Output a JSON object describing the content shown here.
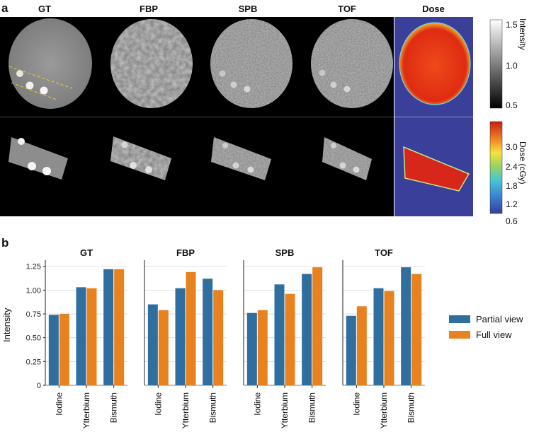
{
  "panel_a": {
    "label": "a",
    "column_titles": [
      "GT",
      "FBP",
      "SPB",
      "TOF",
      "Dose"
    ],
    "intensity_bar": {
      "label": "Intensity",
      "ticks": [
        "1.5",
        "1.0",
        "0.5"
      ]
    },
    "dose_bar": {
      "label": "Dose (cGy)",
      "ticks": [
        "3.0",
        "2.4",
        "1.8",
        "1.2",
        "0.6"
      ]
    }
  },
  "panel_b": {
    "label": "b",
    "ylabel": "Intensity",
    "legend": [
      "Partial view",
      "Full view"
    ]
  },
  "colors": {
    "partial": "#2f6f9f",
    "full": "#e8821e"
  },
  "chart_data": [
    {
      "type": "bar",
      "title": "GT",
      "categories": [
        "Iodine",
        "Ytterbium",
        "Bismuth"
      ],
      "series": [
        {
          "name": "Partial view",
          "values": [
            0.74,
            1.03,
            1.22
          ]
        },
        {
          "name": "Full view",
          "values": [
            0.75,
            1.02,
            1.22
          ]
        }
      ],
      "ylabel": "Intensity",
      "ylim": [
        0,
        1.3
      ],
      "yticks": [
        "0",
        "0.25",
        "0.50",
        "0.75",
        "1.00",
        "1.25"
      ]
    },
    {
      "type": "bar",
      "title": "FBP",
      "categories": [
        "Iodine",
        "Ytterbium",
        "Bismuth"
      ],
      "series": [
        {
          "name": "Partial view",
          "values": [
            0.85,
            1.02,
            1.12
          ]
        },
        {
          "name": "Full view",
          "values": [
            0.79,
            1.19,
            1.0
          ]
        }
      ],
      "ylim": [
        0,
        1.3
      ]
    },
    {
      "type": "bar",
      "title": "SPB",
      "categories": [
        "Iodine",
        "Ytterbium",
        "Bismuth"
      ],
      "series": [
        {
          "name": "Partial view",
          "values": [
            0.76,
            1.06,
            1.17
          ]
        },
        {
          "name": "Full view",
          "values": [
            0.79,
            0.96,
            1.24
          ]
        }
      ],
      "ylim": [
        0,
        1.3
      ]
    },
    {
      "type": "bar",
      "title": "TOF",
      "categories": [
        "Iodine",
        "Ytterbium",
        "Bismuth"
      ],
      "series": [
        {
          "name": "Partial view",
          "values": [
            0.73,
            1.02,
            1.24
          ]
        },
        {
          "name": "Full view",
          "values": [
            0.83,
            0.99,
            1.17
          ]
        }
      ],
      "ylim": [
        0,
        1.3
      ]
    }
  ]
}
